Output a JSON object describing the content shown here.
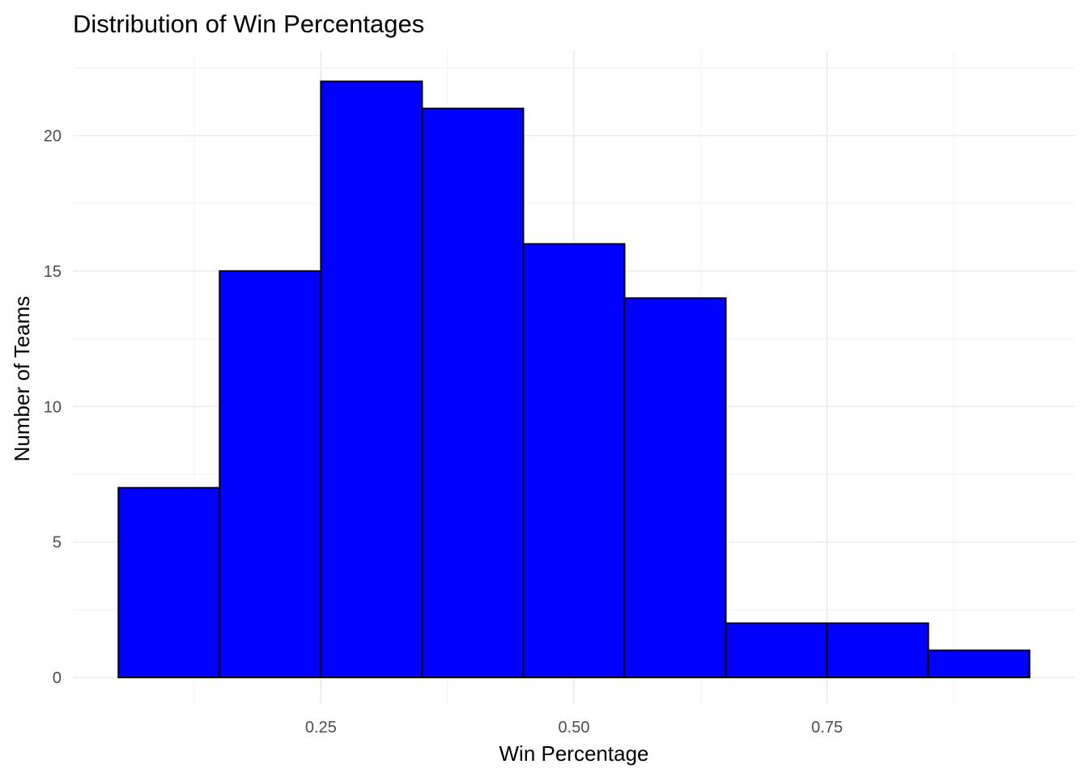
{
  "chart_data": {
    "type": "bar",
    "title": "Distribution of Win Percentages",
    "xlabel": "Win Percentage",
    "ylabel": "Number of Teams",
    "bins": [
      {
        "x0": 0.05,
        "x1": 0.15,
        "count": 7
      },
      {
        "x0": 0.15,
        "x1": 0.25,
        "count": 15
      },
      {
        "x0": 0.25,
        "x1": 0.35,
        "count": 22
      },
      {
        "x0": 0.35,
        "x1": 0.45,
        "count": 21
      },
      {
        "x0": 0.45,
        "x1": 0.55,
        "count": 16
      },
      {
        "x0": 0.55,
        "x1": 0.65,
        "count": 14
      },
      {
        "x0": 0.65,
        "x1": 0.75,
        "count": 2
      },
      {
        "x0": 0.75,
        "x1": 0.85,
        "count": 2
      },
      {
        "x0": 0.85,
        "x1": 0.95,
        "count": 1
      }
    ],
    "x_ticks": [
      {
        "value": 0.25,
        "label": "0.25"
      },
      {
        "value": 0.5,
        "label": "0.50"
      },
      {
        "value": 0.75,
        "label": "0.75"
      }
    ],
    "y_ticks": [
      {
        "value": 0,
        "label": "0"
      },
      {
        "value": 5,
        "label": "5"
      },
      {
        "value": 10,
        "label": "10"
      },
      {
        "value": 15,
        "label": "15"
      },
      {
        "value": 20,
        "label": "20"
      }
    ],
    "xlim": [
      0.005,
      0.995
    ],
    "ylim": [
      0,
      22
    ],
    "bar_fill": "#0000ff",
    "bar_outline": "#000000",
    "grid": true,
    "legend": "none"
  }
}
